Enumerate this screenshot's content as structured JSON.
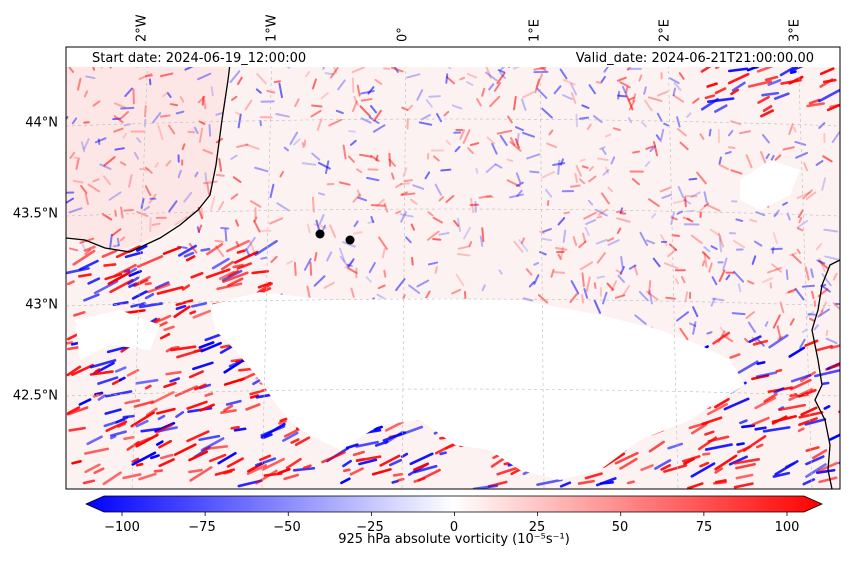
{
  "header": {
    "start_date": "Start date: 2024-06-19_12:00:00",
    "valid_date": "Valid_date: 2024-06-21T21:00:00.00"
  },
  "axes": {
    "lon_ticks": [
      "2°W",
      "1°W",
      "0°",
      "1°E",
      "2°E",
      "3°E"
    ],
    "lat_ticks": [
      "44°N",
      "43.5°N",
      "43°N",
      "42.5°N"
    ]
  },
  "colorbar": {
    "ticks": [
      "−100",
      "−75",
      "−50",
      "−25",
      "0",
      "25",
      "50",
      "75",
      "100"
    ],
    "label": "925 hPa absolute vorticity (10⁻⁵s⁻¹)",
    "min_color": "#0000ff",
    "mid_color": "#ffffff",
    "max_color": "#ff0000"
  },
  "markers": [
    "city-point-1",
    "city-point-2"
  ]
}
